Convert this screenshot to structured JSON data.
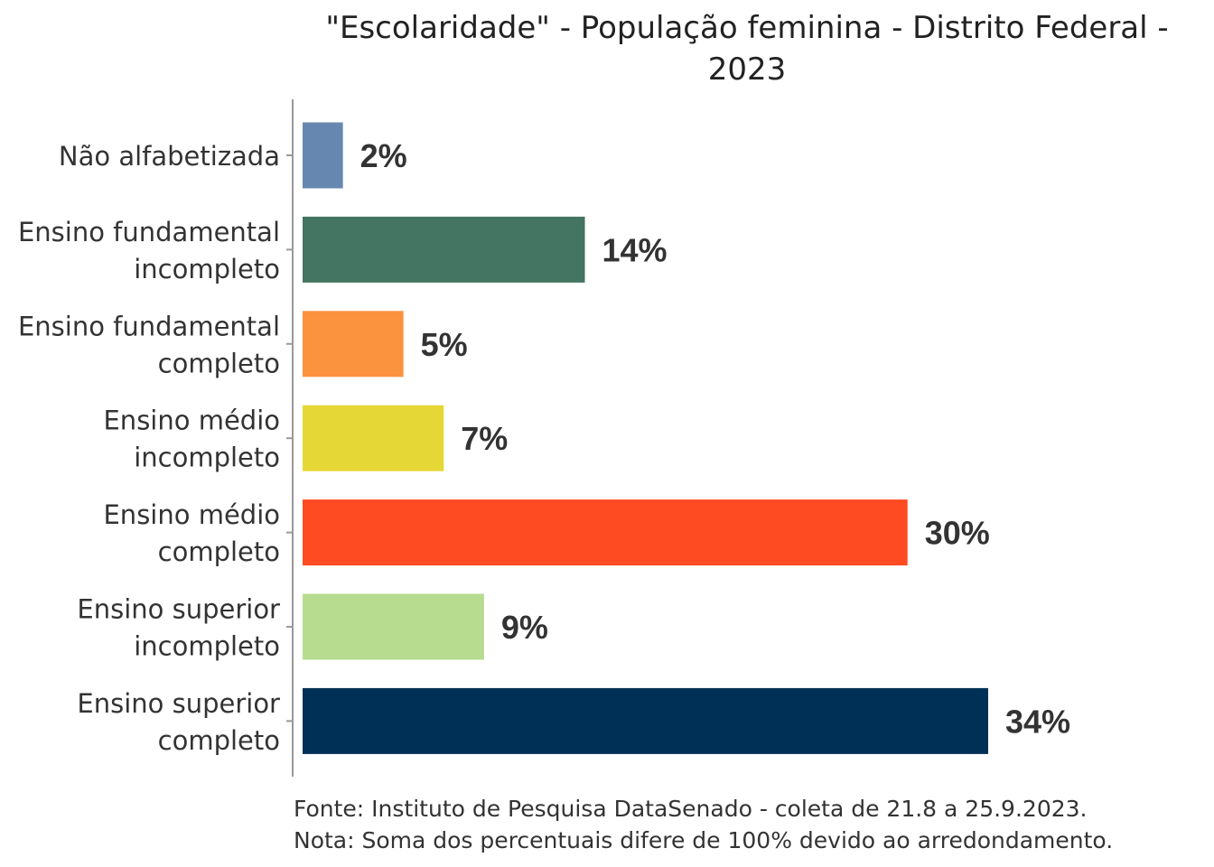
{
  "chart_data": {
    "type": "bar",
    "orientation": "horizontal",
    "title": "\"Escolaridade\" - População feminina - Distrito Federal - 2023",
    "categories": [
      [
        "Não alfabetizada"
      ],
      [
        "Ensino fundamental",
        "incompleto"
      ],
      [
        "Ensino fundamental",
        "completo"
      ],
      [
        "Ensino médio",
        "incompleto"
      ],
      [
        "Ensino médio",
        "completo"
      ],
      [
        "Ensino superior",
        "incompleto"
      ],
      [
        "Ensino superior",
        "completo"
      ]
    ],
    "values": [
      2,
      14,
      5,
      7,
      30,
      9,
      34
    ],
    "labels": [
      "2%",
      "14%",
      "5%",
      "7%",
      "30%",
      "9%",
      "34%"
    ],
    "colors": [
      "#6688b0",
      "#447562",
      "#fb923e",
      "#e5d836",
      "#ff4b22",
      "#b8dc8f",
      "#003056"
    ],
    "xlim": [
      0,
      34
    ],
    "xlabel": "",
    "ylabel": "",
    "grid": false
  },
  "notes": {
    "source": "Fonte: Instituto de Pesquisa DataSenado - coleta de 21.8 a 25.9.2023.",
    "note": "Nota: Soma dos percentuais difere de 100% devido ao arredondamento."
  }
}
